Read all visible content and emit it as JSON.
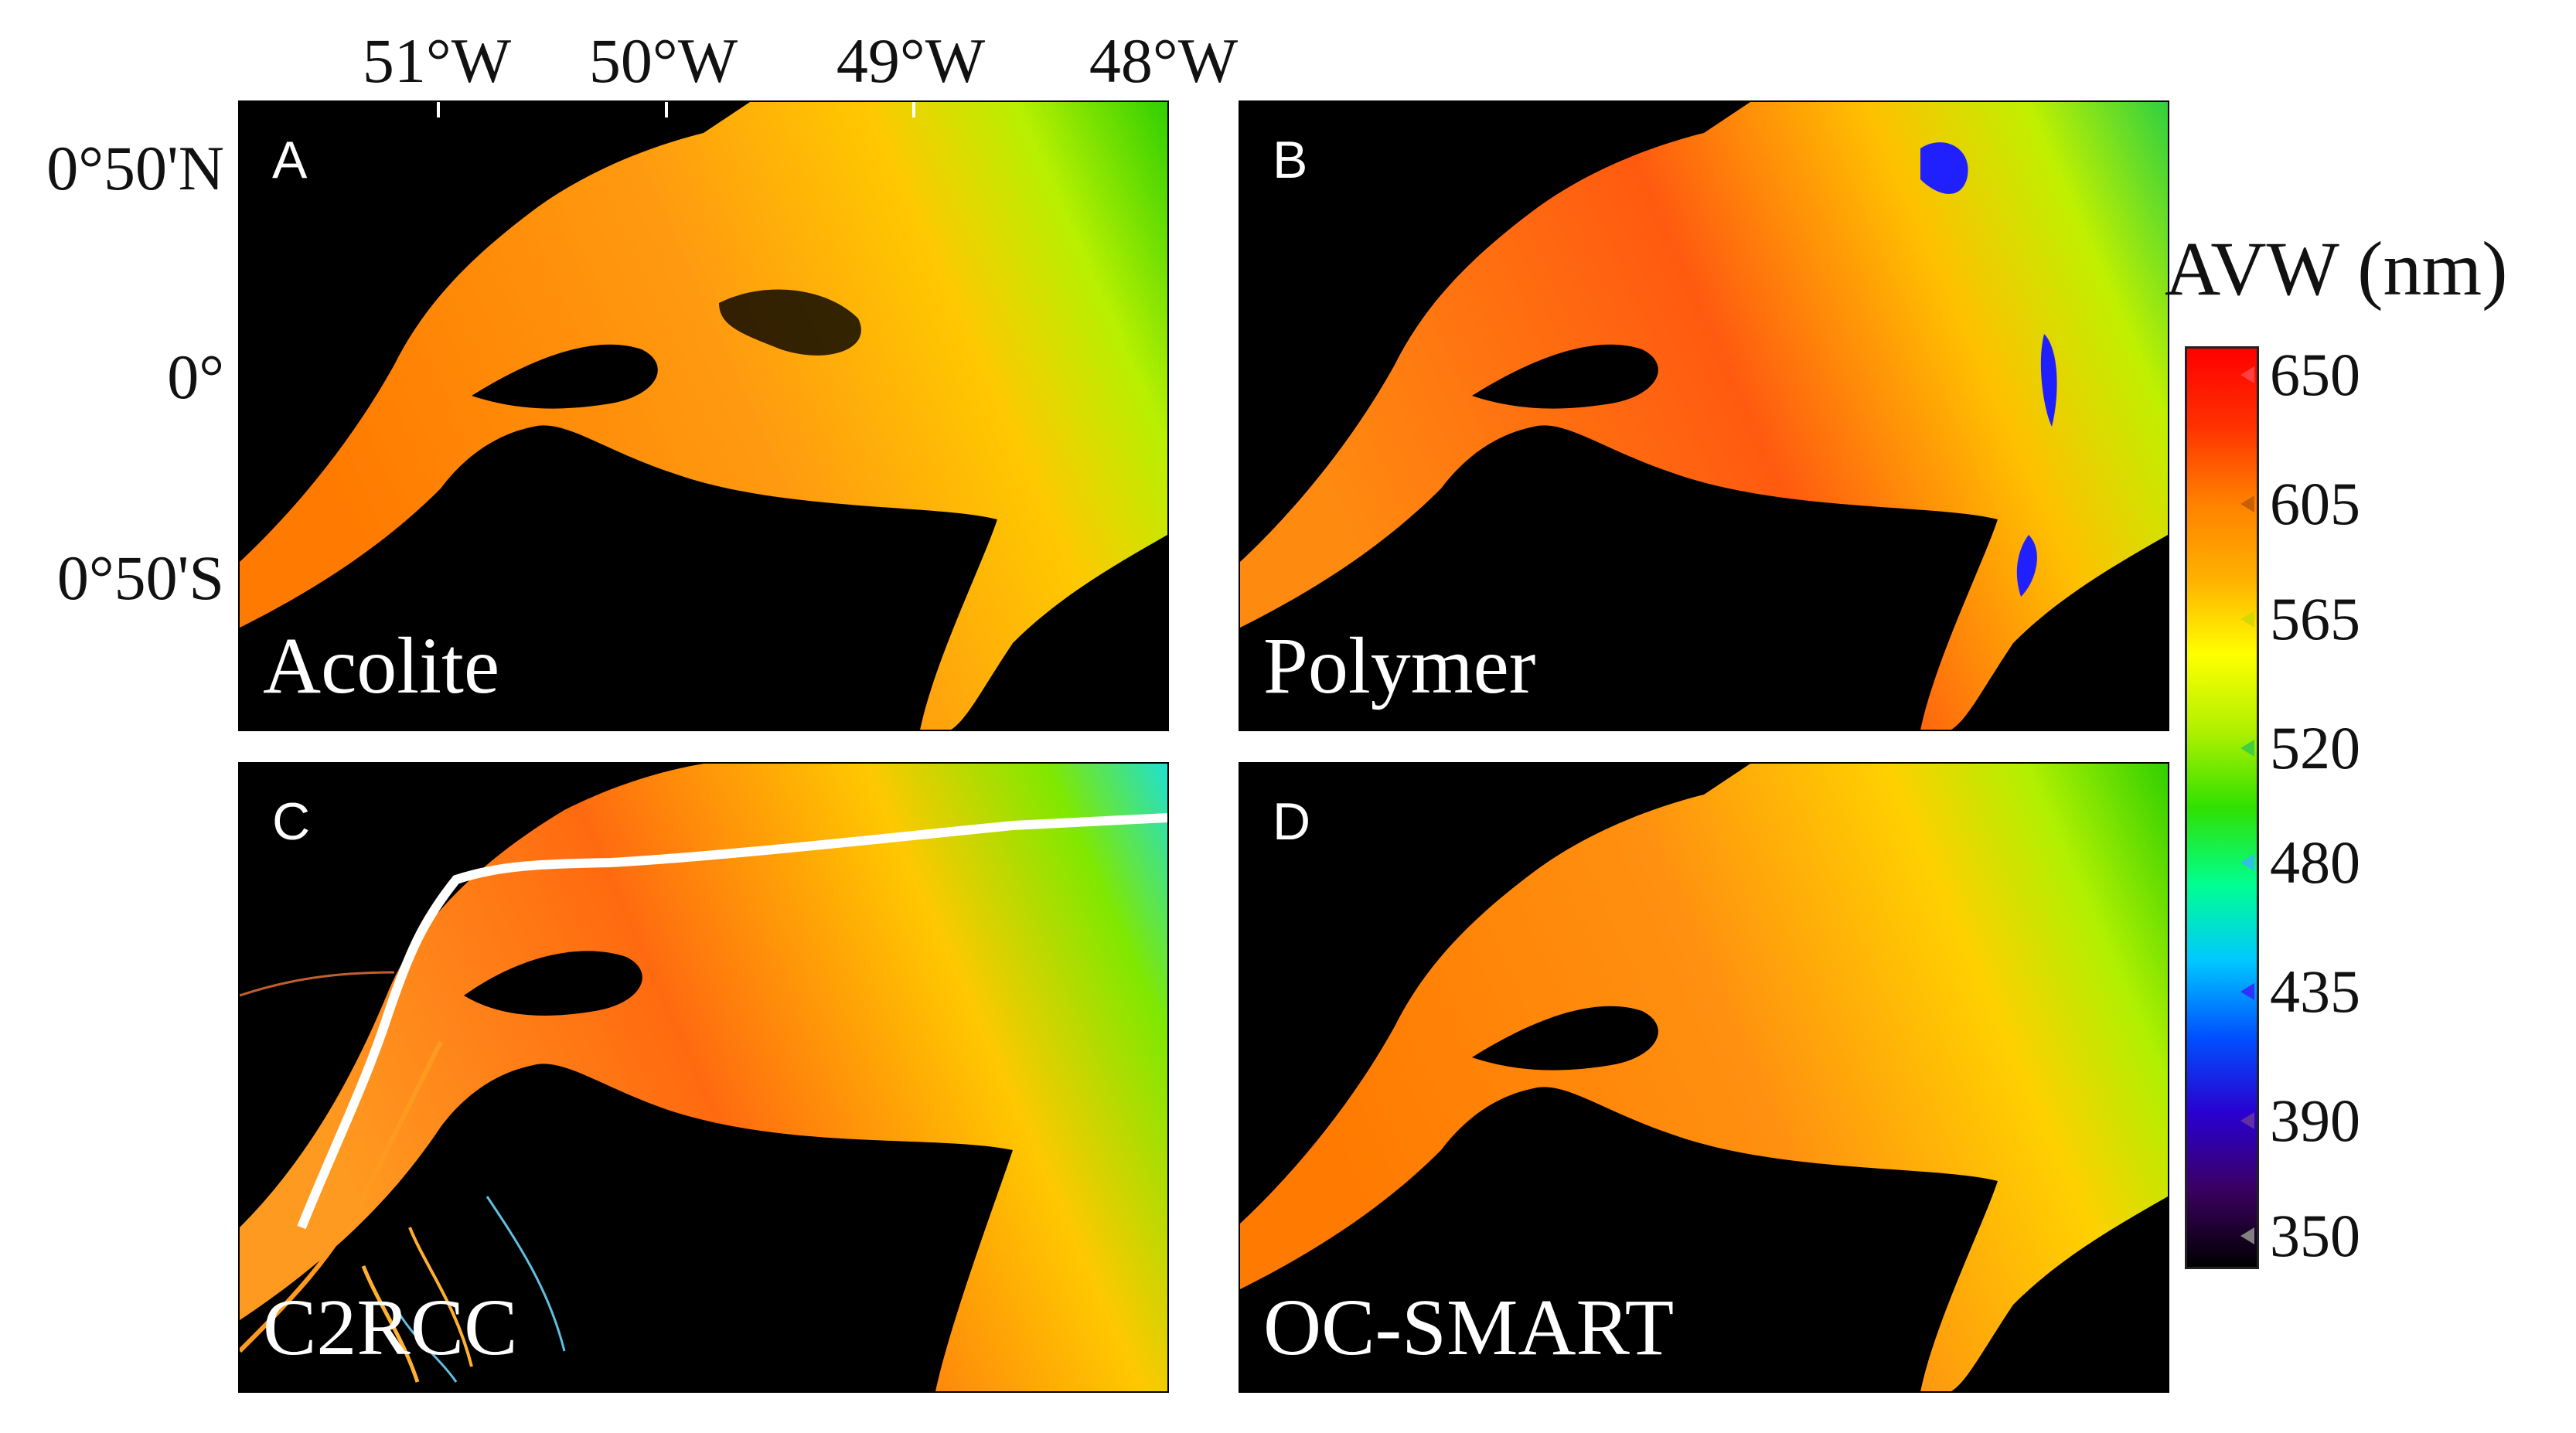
{
  "longitudes": [
    "51°W",
    "50°W",
    "49°W",
    "48°W"
  ],
  "latitudes": [
    "0°50'N",
    "0°",
    "0°50'S"
  ],
  "panels": [
    {
      "letter": "A",
      "algorithm": "Acolite"
    },
    {
      "letter": "B",
      "algorithm": "Polymer"
    },
    {
      "letter": "C",
      "algorithm": "C2RCC"
    },
    {
      "letter": "D",
      "algorithm": "OC-SMART"
    }
  ],
  "colorbar": {
    "title": "AVW (nm)",
    "ticks": [
      "650",
      "605",
      "565",
      "520",
      "480",
      "435",
      "390",
      "350"
    ],
    "tick_values": [
      650,
      605,
      565,
      520,
      480,
      435,
      390,
      350
    ],
    "range": [
      340,
      660
    ],
    "colors": [
      "#000000",
      "#3a0060",
      "#2a00d0",
      "#0050ff",
      "#00c8ff",
      "#00ff90",
      "#30e000",
      "#b0f000",
      "#ffff00",
      "#ffb000",
      "#ff8000",
      "#ff3000",
      "#ff0000"
    ],
    "tick_marker_colors": [
      "#ff4040",
      "#c86000",
      "#d8d800",
      "#40d040",
      "#30c0e0",
      "#3030ff",
      "#6030a0",
      "#808080"
    ]
  }
}
